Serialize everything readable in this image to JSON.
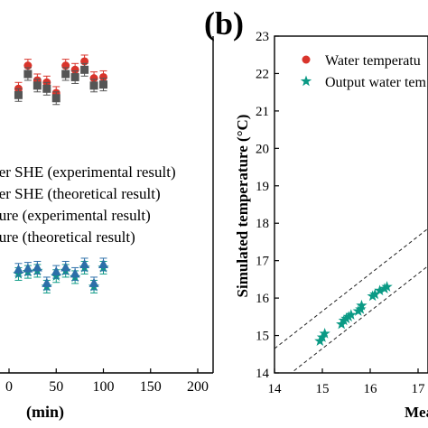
{
  "figure": {
    "panel_label": "(b)"
  },
  "chart_data": [
    {
      "type": "scatter",
      "panel": "left",
      "xlabel": "(min)",
      "xlim": [
        0,
        200
      ],
      "x_ticks": [
        {
          "value": 0,
          "label": "0"
        },
        {
          "value": 50,
          "label": "50"
        },
        {
          "value": 100,
          "label": "100"
        },
        {
          "value": 150,
          "label": "150"
        },
        {
          "value": 200,
          "label": "200"
        }
      ],
      "legend_placement": "center",
      "series": [
        {
          "name": "ter SHE (experimental result)",
          "color": "#d9342b",
          "marker": "circle",
          "x": [
            10,
            20,
            30,
            40,
            50,
            60,
            70,
            80,
            90,
            100
          ],
          "y": [
            13.5,
            14.6,
            13.9,
            13.8,
            13.3,
            14.6,
            14.4,
            14.8,
            14.0,
            14.05
          ],
          "err": [
            0.3,
            0.3,
            0.3,
            0.3,
            0.3,
            0.3,
            0.3,
            0.3,
            0.3,
            0.3
          ]
        },
        {
          "name": "ter SHE (theoretical result)",
          "color": "#555555",
          "marker": "square",
          "x": [
            10,
            20,
            30,
            40,
            50,
            60,
            70,
            80,
            90,
            100
          ],
          "y": [
            13.2,
            14.2,
            13.65,
            13.5,
            13.05,
            14.2,
            14.05,
            14.4,
            13.65,
            13.7
          ],
          "err": [
            0.3,
            0.3,
            0.3,
            0.3,
            0.3,
            0.3,
            0.3,
            0.3,
            0.3,
            0.3
          ]
        },
        {
          "name": "ture (experimental result)",
          "color": "#0b9a85",
          "marker": "star",
          "x": [
            10,
            20,
            30,
            40,
            50,
            60,
            70,
            80,
            90,
            100
          ],
          "y": [
            4.7,
            4.8,
            4.85,
            4.1,
            4.6,
            4.85,
            4.55,
            5.0,
            4.1,
            5.0
          ],
          "err": [
            0.3,
            0.3,
            0.3,
            0.3,
            0.3,
            0.3,
            0.3,
            0.3,
            0.3,
            0.3
          ]
        },
        {
          "name": "ture (theoretical result)",
          "color": "#2c6fa8",
          "marker": "triangle",
          "x": [
            10,
            20,
            30,
            40,
            50,
            60,
            70,
            80,
            90,
            100
          ],
          "y": [
            4.9,
            4.95,
            5.0,
            4.25,
            4.8,
            5.0,
            4.7,
            5.15,
            4.25,
            5.15
          ],
          "err": [
            0.3,
            0.3,
            0.3,
            0.3,
            0.3,
            0.3,
            0.3,
            0.3,
            0.3,
            0.3
          ]
        }
      ]
    },
    {
      "type": "scatter",
      "panel": "right",
      "xlabel": "Measu",
      "ylabel": "Simulated temperature (°C)",
      "xlim": [
        14,
        18
      ],
      "ylim": [
        14,
        23
      ],
      "x_ticks": [
        {
          "value": 14,
          "label": "14"
        },
        {
          "value": 15,
          "label": "15"
        },
        {
          "value": 16,
          "label": "16"
        },
        {
          "value": 17,
          "label": "17"
        }
      ],
      "y_ticks": [
        {
          "value": 14,
          "label": "14"
        },
        {
          "value": 15,
          "label": "15"
        },
        {
          "value": 16,
          "label": "16"
        },
        {
          "value": 17,
          "label": "17"
        },
        {
          "value": 18,
          "label": "18"
        },
        {
          "value": 19,
          "label": "19"
        },
        {
          "value": 20,
          "label": "20"
        },
        {
          "value": 21,
          "label": "21"
        },
        {
          "value": 22,
          "label": "22"
        },
        {
          "value": 23,
          "label": "23"
        }
      ],
      "legend_placement": "top-right",
      "series": [
        {
          "name": "Water temperatu",
          "color": "#d9342b",
          "marker": "circle",
          "x": [],
          "y": []
        },
        {
          "name": "Output water tem",
          "color": "#0b9a85",
          "marker": "star",
          "x": [
            14.95,
            15.0,
            15.05,
            15.4,
            15.45,
            15.5,
            15.55,
            15.6,
            15.75,
            15.8,
            15.82,
            16.05,
            16.1,
            16.2,
            16.3,
            16.35
          ],
          "y": [
            14.85,
            14.95,
            15.05,
            15.3,
            15.4,
            15.45,
            15.5,
            15.55,
            15.65,
            15.7,
            15.8,
            16.05,
            16.1,
            16.2,
            16.25,
            16.3
          ]
        }
      ],
      "bounds": [
        {
          "style": "dashed",
          "x": [
            14,
            18
          ],
          "y": [
            14.65,
            18.65
          ]
        },
        {
          "style": "dashed",
          "x": [
            14.2,
            18
          ],
          "y": [
            13.85,
            17.65
          ]
        }
      ]
    }
  ]
}
